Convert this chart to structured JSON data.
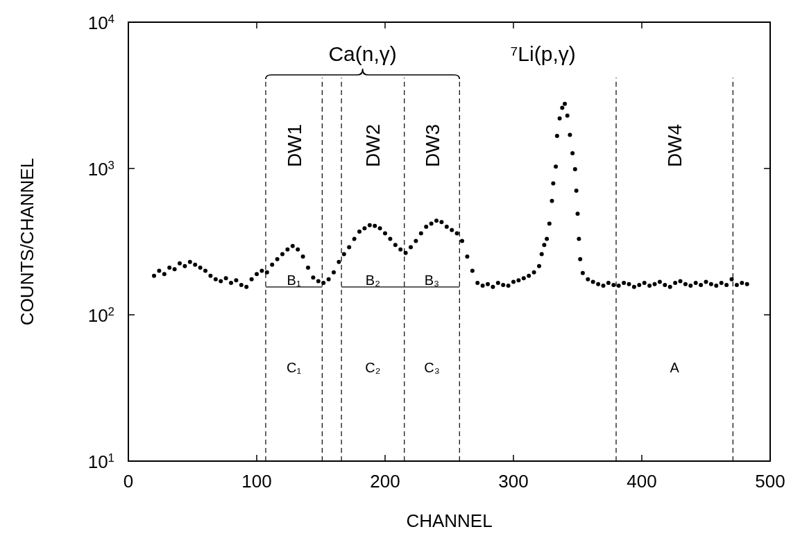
{
  "chart_data": {
    "type": "scatter",
    "xlabel": "CHANNEL",
    "ylabel": "COUNTS/CHANNEL",
    "log": "y",
    "xlim": [
      0,
      500
    ],
    "ylim": [
      10,
      10000
    ],
    "xticks": [
      0,
      100,
      200,
      300,
      400,
      500
    ],
    "yticks": [
      {
        "value": 10,
        "label": "10$^{1}$"
      },
      {
        "value": 100,
        "label": "10$^{2}$"
      },
      {
        "value": 1000,
        "label": "10$^{3}$"
      },
      {
        "value": 10000,
        "label": "10$^{4}$"
      }
    ],
    "grid": false,
    "marker": "circle",
    "series": [
      {
        "color": "#000000",
        "x": [
          20,
          24,
          28,
          32,
          36,
          40,
          44,
          48,
          52,
          56,
          60,
          64,
          68,
          72,
          76,
          80,
          84,
          88,
          92,
          96,
          100,
          104,
          108,
          112,
          116,
          120,
          124,
          128,
          132,
          136,
          140,
          144,
          148,
          152,
          156,
          160,
          164,
          168,
          172,
          176,
          180,
          184,
          188,
          192,
          196,
          200,
          204,
          208,
          212,
          216,
          220,
          224,
          228,
          232,
          236,
          240,
          244,
          248,
          252,
          256,
          260,
          264,
          268,
          272,
          276,
          280,
          284,
          288,
          292,
          296,
          300,
          304,
          308,
          312,
          316,
          320,
          322,
          324,
          326,
          328,
          330,
          331,
          333,
          334,
          336,
          338,
          340,
          342,
          344,
          346,
          348,
          349,
          350,
          351,
          352,
          354,
          358,
          362,
          366,
          370,
          374,
          378,
          382,
          386,
          390,
          394,
          398,
          402,
          406,
          410,
          414,
          418,
          422,
          426,
          430,
          434,
          438,
          442,
          446,
          450,
          454,
          458,
          462,
          466,
          470,
          474,
          478,
          482
        ],
        "values": [
          185,
          200,
          190,
          210,
          205,
          225,
          215,
          230,
          220,
          210,
          200,
          185,
          175,
          170,
          178,
          165,
          172,
          160,
          155,
          175,
          190,
          200,
          195,
          220,
          240,
          260,
          280,
          295,
          280,
          250,
          210,
          180,
          170,
          165,
          175,
          195,
          230,
          260,
          290,
          330,
          370,
          390,
          410,
          405,
          390,
          360,
          330,
          300,
          280,
          265,
          290,
          320,
          360,
          400,
          420,
          440,
          430,
          400,
          380,
          360,
          320,
          250,
          200,
          165,
          158,
          162,
          155,
          165,
          160,
          158,
          168,
          172,
          178,
          185,
          195,
          215,
          260,
          300,
          330,
          420,
          600,
          790,
          1030,
          1670,
          2200,
          2600,
          2770,
          2300,
          1700,
          1270,
          990,
          705,
          490,
          330,
          240,
          193,
          175,
          168,
          162,
          158,
          165,
          160,
          158,
          165,
          162,
          155,
          160,
          165,
          158,
          162,
          168,
          160,
          155,
          165,
          170,
          162,
          158,
          165,
          160,
          168,
          162,
          158,
          165,
          160,
          175,
          160,
          165,
          162
        ]
      },
      {
        "type": "line",
        "color": "#000000",
        "marker": "none",
        "x": [
          107,
          151
        ],
        "values": [
          155,
          155
        ]
      },
      {
        "type": "line",
        "color": "#000000",
        "marker": "none",
        "x": [
          166,
          258
        ],
        "values": [
          155,
          155
        ]
      }
    ],
    "ref_lines": [
      {
        "axis": "x",
        "value": 107,
        "line_style": "dashed"
      },
      {
        "axis": "x",
        "value": 151,
        "line_style": "dashed"
      },
      {
        "axis": "x",
        "value": 166,
        "line_style": "dashed"
      },
      {
        "axis": "x",
        "value": 215,
        "line_style": "dashed"
      },
      {
        "axis": "x",
        "value": 258,
        "line_style": "dashed"
      },
      {
        "axis": "x",
        "value": 380,
        "line_style": "dashed"
      },
      {
        "axis": "x",
        "value": 471,
        "line_style": "dashed"
      }
    ],
    "annotations": [
      "DW1",
      "DW2",
      "DW3",
      "DW4",
      "B₁",
      "B₂",
      "B₃",
      "C₁",
      "C₂",
      "C₃",
      "A",
      "Ca(n,γ)",
      "⁷Li(p,γ)"
    ]
  }
}
